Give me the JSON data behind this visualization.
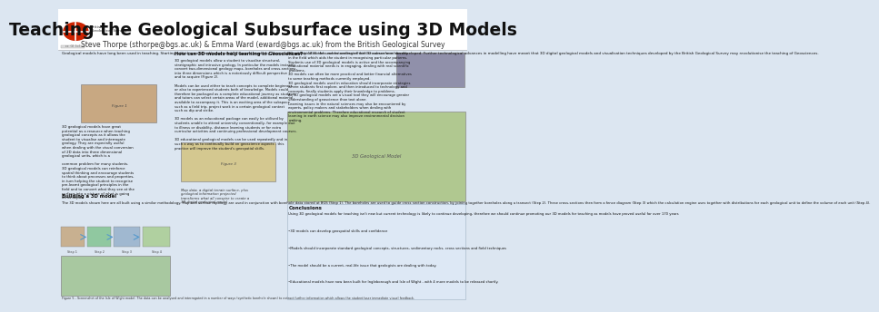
{
  "title": "Teaching the Geological Subsurface using 3D Models",
  "authors": "Steve Thorpe (sthorpe@bgs.ac.uk) & Emma Ward (eward@bgs.ac.uk) from the British Geological Survey",
  "background_color": "#dce6f1",
  "title_fontsize": 13.5,
  "author_fontsize": 5.5,
  "intro_text": "Geological models have long been used in teaching. Starting with the wooden block models (Figure 1) made by Thomas Sopwith in 1841 the understanding of the 3D subsurface has developed. Further technological advances in modelling have meant that 3D digital geological models and visualisation techniques developed by the British Geological Survey may revolutionise the teaching of Geosciences.",
  "left_body_text": "3D geological models have great\npotential as a resource when teaching\ngeological concepts as it allows the\nstudent to visualise and interrogate\ngeology. They are especially useful\nwhen dealing with the visual conversion\nof 2D data into three dimensional\ngeological units, which is a\n\ncommon problem for many students.\n3D geological models can reinforce\nspatial thinking and encourage students\nto think about processes and properties,\nin turn helping the student to recognise\npre-learnt geological principles in the\nfield and to convert what they see at the\nsurface into a picture of what is going\non at depth.",
  "building_title": "Building a 3D model",
  "building_text": "The 3D models shown here are all built using a similar methodology. Map and surface topology are used in conjunction with borehole data stored at BGS (Step 1). The boreholes are used to guide cross section construction, by joining together boreholes along a transect (Step 2). These cross-sections then form a fence diagram (Step 3) which the calculation engine uses together with distributions for each geological unit to define the volume of each unit (Step 4).",
  "fig5_caption": "Figure 5 - Screenshot of the Isle of Wight model. The data can be analysed and interrogated in a number of ways (synthetic borehole shown) to extract further information which allows the student/user immediate visual feedback.",
  "how_title": "How can 3D models help learning in Geosciences?",
  "how_text": "3D geological models allow a student to visualise structural,\nstratigraphic and intrusive geology. In particular the models instantly\nconvert two-dimensional geology maps, boreholes and cross-sections\ninto three dimensions which is a notoriously difficult perspective\nand to acquire (Figure 2).\n\nModels can be used either to teach concepts to complete beginners\nor also to experienced students both of knowledge. Models could\ntherefore be packaged as a complete educational journey as students\nand tutors can select certain areas of the model, additional material\navailable to accompany it. This is an exciting area of the subspace\nsuch as a field trip, project work in a certain geological context\nsuch as dip and strike.\n\n3D models as an educational package can easily be utilised by\nstudents unable to attend university conventionally, for example due\nto illness or disability, distance learning students or for extra\ncurricular activities and continuing professional development courses.\n\n3D educational geological models can be used repeatedly and in\nsuch a way as to continually build on geoscience aspects - this\npractice will improve the student's geospatial skills.",
  "fig2_caption": "Map data, a digital terrain surface, plus\ngeological information projected\ntransforms what all conspire to create a\n3D digital geological model",
  "right_text": "3D geological models can be contrasted with resources seen directly\nin the field which aids the student in recognising particular patterns.\nStudents use of 3D geological models is active and the accompanying\neducational material needs is in engaging, dealing with real scientific\nproblems.\n3D models can often be more practical and better financial alternatives\nto some teaching methods currently employed.\n3D geological models used in education should incorporate strategies\nwhere students first explore, and then introduced to technology and\nconcepts, finally students apply their knowledge to problems.\nAs 3D geological models are a visual tool they will encourage greater\nunderstanding of geoscience than text alone.\nLearning issues in the natural sciences may also be encountered by\nexperts, policy makers and stakeholders when dealing with\nenvironmental problems. Therefore educational research of student\nlearning in earth science may also improve environmental decision\nmaking.",
  "conclusions_title": "Conclusions",
  "conclusions_lines": [
    "Using 3D geological models for teaching isn't new but current technology is likely to continue developing, therefore we should continue promoting our 3D models for teaching as models have proved useful for over 170 years",
    "3D models can develop geospatial skills and confidence",
    "Models should incorporate standard geological concepts, structures, sedimentary rocks, cross sections and field techniques",
    "The model should be a current, real-life issue that geologists are dealing with today.",
    "Educational models have now been built for Ingleborough and Isle of Wight , with 4 more models to be released shortly."
  ]
}
